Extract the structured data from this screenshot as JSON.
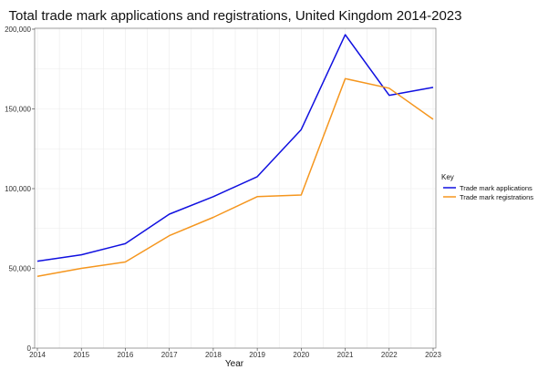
{
  "chart_data": {
    "type": "line",
    "title": "Total trade mark applications and registrations, United Kingdom 2014-2023",
    "xlabel": "Year",
    "ylabel": "",
    "x": [
      2014,
      2015,
      2016,
      2017,
      2018,
      2019,
      2020,
      2021,
      2022,
      2023
    ],
    "ylim": [
      0,
      200000
    ],
    "yticks": [
      0,
      50000,
      100000,
      150000,
      200000
    ],
    "ytick_labels": [
      "0",
      "50,000",
      "100,000",
      "150,000",
      "200,000"
    ],
    "legend_title": "Key",
    "legend_position": "right",
    "grid": true,
    "series": [
      {
        "name": "Trade mark applications",
        "color": "#1010e0",
        "values": [
          54500,
          58500,
          65500,
          84000,
          95000,
          107500,
          137000,
          196500,
          158500,
          163500
        ]
      },
      {
        "name": "Trade mark registrations",
        "color": "#f5961e",
        "values": [
          45000,
          50000,
          54000,
          70500,
          82000,
          95000,
          96000,
          169000,
          163000,
          143500
        ]
      }
    ]
  }
}
